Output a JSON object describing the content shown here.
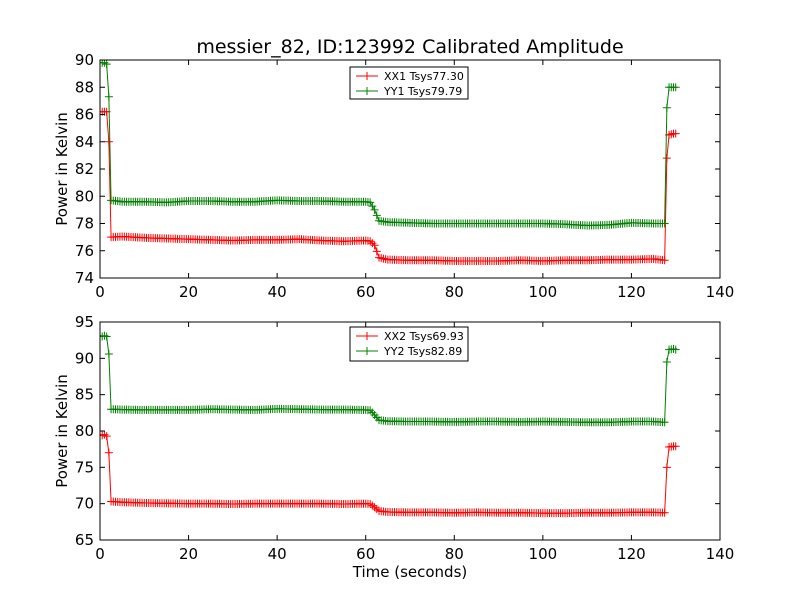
{
  "chart_data": [
    {
      "type": "line",
      "title": "messier_82, ID:123992 Calibrated Amplitude",
      "xlabel": "",
      "ylabel": "Power in Kelvin",
      "xlim": [
        0,
        140
      ],
      "ylim": [
        74,
        90
      ],
      "xticks": [
        0,
        20,
        40,
        60,
        80,
        100,
        120,
        140
      ],
      "yticks": [
        74,
        76,
        78,
        80,
        82,
        84,
        86,
        88,
        90
      ],
      "grid": false,
      "legend": "top-center",
      "marker": "+",
      "series": [
        {
          "name": "XX1 Tsys77.30",
          "color": "#ff0000",
          "points": [
            [
              0.5,
              86.2
            ],
            [
              1.0,
              86.2
            ],
            [
              1.5,
              86.2
            ],
            [
              2.0,
              84.0
            ],
            [
              2.5,
              77.0
            ],
            [
              5,
              77.05
            ],
            [
              10,
              76.95
            ],
            [
              15,
              76.9
            ],
            [
              20,
              76.85
            ],
            [
              25,
              76.8
            ],
            [
              30,
              76.75
            ],
            [
              35,
              76.8
            ],
            [
              40,
              76.8
            ],
            [
              45,
              76.85
            ],
            [
              50,
              76.75
            ],
            [
              55,
              76.7
            ],
            [
              60,
              76.75
            ],
            [
              61,
              76.7
            ],
            [
              62,
              76.4
            ],
            [
              63,
              75.5
            ],
            [
              65,
              75.35
            ],
            [
              70,
              75.3
            ],
            [
              75,
              75.3
            ],
            [
              80,
              75.25
            ],
            [
              85,
              75.25
            ],
            [
              90,
              75.25
            ],
            [
              95,
              75.3
            ],
            [
              100,
              75.25
            ],
            [
              105,
              75.3
            ],
            [
              110,
              75.3
            ],
            [
              115,
              75.35
            ],
            [
              120,
              75.35
            ],
            [
              125,
              75.4
            ],
            [
              127.5,
              75.3
            ],
            [
              128,
              82.8
            ],
            [
              128.5,
              84.5
            ],
            [
              129.5,
              84.6
            ],
            [
              130,
              84.6
            ]
          ]
        },
        {
          "name": "YY1 Tsys79.79",
          "color": "#008000",
          "points": [
            [
              0.5,
              89.8
            ],
            [
              1.0,
              89.8
            ],
            [
              1.5,
              89.7
            ],
            [
              2.0,
              87.3
            ],
            [
              2.5,
              79.7
            ],
            [
              5,
              79.6
            ],
            [
              10,
              79.6
            ],
            [
              15,
              79.55
            ],
            [
              20,
              79.65
            ],
            [
              25,
              79.65
            ],
            [
              30,
              79.6
            ],
            [
              35,
              79.6
            ],
            [
              40,
              79.7
            ],
            [
              45,
              79.65
            ],
            [
              50,
              79.65
            ],
            [
              55,
              79.6
            ],
            [
              60,
              79.6
            ],
            [
              61,
              79.55
            ],
            [
              62,
              79.0
            ],
            [
              63,
              78.2
            ],
            [
              65,
              78.1
            ],
            [
              70,
              78.05
            ],
            [
              75,
              78.0
            ],
            [
              80,
              78.0
            ],
            [
              85,
              78.0
            ],
            [
              90,
              78.0
            ],
            [
              95,
              78.0
            ],
            [
              100,
              78.0
            ],
            [
              105,
              77.95
            ],
            [
              110,
              77.85
            ],
            [
              115,
              77.9
            ],
            [
              120,
              78.05
            ],
            [
              125,
              78.0
            ],
            [
              127.5,
              78.0
            ],
            [
              128,
              86.5
            ],
            [
              128.5,
              88.0
            ],
            [
              129.5,
              88.0
            ],
            [
              130,
              88.0
            ]
          ]
        }
      ]
    },
    {
      "type": "line",
      "title": "",
      "xlabel": "Time (seconds)",
      "ylabel": "Power in Kelvin",
      "xlim": [
        0,
        140
      ],
      "ylim": [
        65,
        95
      ],
      "xticks": [
        0,
        20,
        40,
        60,
        80,
        100,
        120,
        140
      ],
      "yticks": [
        65,
        70,
        75,
        80,
        85,
        90,
        95
      ],
      "grid": false,
      "legend": "top-center",
      "marker": "+",
      "series": [
        {
          "name": "XX2 Tsys69.93",
          "color": "#ff0000",
          "points": [
            [
              0.5,
              79.4
            ],
            [
              1.0,
              79.5
            ],
            [
              1.5,
              79.3
            ],
            [
              2.0,
              77.0
            ],
            [
              2.5,
              70.3
            ],
            [
              5,
              70.2
            ],
            [
              10,
              70.1
            ],
            [
              15,
              70.05
            ],
            [
              20,
              70.0
            ],
            [
              25,
              70.0
            ],
            [
              30,
              69.95
            ],
            [
              35,
              70.0
            ],
            [
              40,
              70.0
            ],
            [
              45,
              70.0
            ],
            [
              50,
              70.0
            ],
            [
              55,
              69.95
            ],
            [
              60,
              70.0
            ],
            [
              61,
              69.95
            ],
            [
              62,
              69.5
            ],
            [
              63,
              69.0
            ],
            [
              65,
              68.85
            ],
            [
              70,
              68.8
            ],
            [
              75,
              68.8
            ],
            [
              80,
              68.75
            ],
            [
              85,
              68.8
            ],
            [
              90,
              68.75
            ],
            [
              95,
              68.75
            ],
            [
              100,
              68.7
            ],
            [
              105,
              68.7
            ],
            [
              110,
              68.75
            ],
            [
              115,
              68.75
            ],
            [
              120,
              68.8
            ],
            [
              125,
              68.8
            ],
            [
              127.5,
              68.75
            ],
            [
              128,
              75.0
            ],
            [
              128.5,
              77.8
            ],
            [
              129.5,
              77.9
            ],
            [
              130,
              77.9
            ]
          ]
        },
        {
          "name": "YY2 Tsys82.89",
          "color": "#008000",
          "points": [
            [
              0.5,
              93.0
            ],
            [
              1.0,
              93.1
            ],
            [
              1.5,
              93.0
            ],
            [
              2.0,
              90.6
            ],
            [
              2.5,
              83.0
            ],
            [
              5,
              82.95
            ],
            [
              10,
              82.9
            ],
            [
              15,
              82.9
            ],
            [
              20,
              82.9
            ],
            [
              25,
              83.0
            ],
            [
              30,
              82.95
            ],
            [
              35,
              82.9
            ],
            [
              40,
              83.05
            ],
            [
              45,
              83.0
            ],
            [
              50,
              82.95
            ],
            [
              55,
              82.95
            ],
            [
              60,
              82.9
            ],
            [
              61,
              82.85
            ],
            [
              62,
              82.2
            ],
            [
              63,
              81.5
            ],
            [
              65,
              81.35
            ],
            [
              70,
              81.3
            ],
            [
              75,
              81.3
            ],
            [
              80,
              81.25
            ],
            [
              85,
              81.3
            ],
            [
              90,
              81.3
            ],
            [
              95,
              81.25
            ],
            [
              100,
              81.3
            ],
            [
              105,
              81.25
            ],
            [
              110,
              81.2
            ],
            [
              115,
              81.2
            ],
            [
              120,
              81.3
            ],
            [
              125,
              81.3
            ],
            [
              127.5,
              81.2
            ],
            [
              128,
              89.5
            ],
            [
              128.5,
              91.2
            ],
            [
              129.5,
              91.3
            ],
            [
              130,
              91.2
            ]
          ]
        }
      ]
    }
  ]
}
